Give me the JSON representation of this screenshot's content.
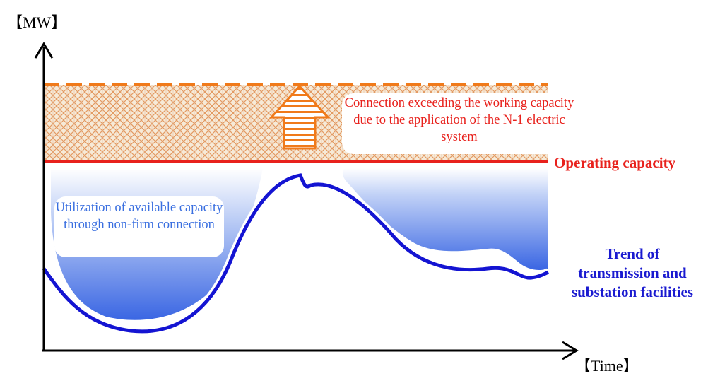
{
  "diagram": {
    "y_axis_unit": "【MW】",
    "x_axis_unit": "【Time】",
    "operating_capacity_label": "Operating capacity",
    "exceed_callout": "Connection exceeding the working capacity due to the application of the N-1 electric system",
    "nonfirm_callout": "Utilization of available capacity through non-firm connection",
    "trend_label": "Trend of transmission and substation facilities",
    "colors": {
      "capacity_line": "#e8211c",
      "dashed_line": "#f07a1a",
      "trend_line": "#1414d2",
      "fill_blue": "#3f6fe6",
      "hatch": "#e8a06a",
      "arrow": "#f07a1a",
      "callout_text_red": "#e8211c",
      "callout_text_blue": "#3a6fe0"
    }
  }
}
